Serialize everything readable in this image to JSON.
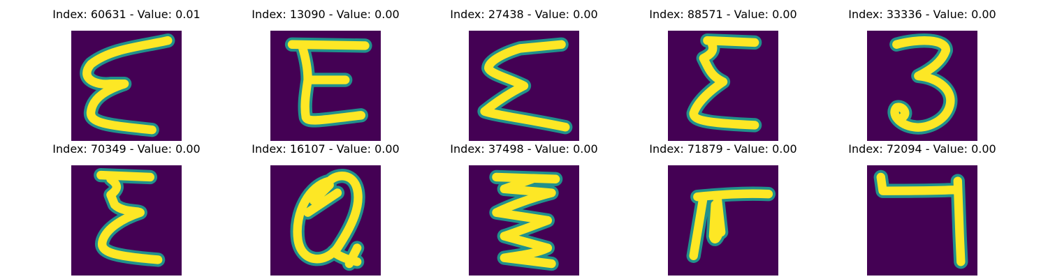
{
  "panels": [
    {
      "index": "60631",
      "value": "0.01",
      "title": "Index: 60631 - Value: 0.01"
    },
    {
      "index": "13090",
      "value": "0.00",
      "title": "Index: 13090 - Value: 0.00"
    },
    {
      "index": "27438",
      "value": "0.00",
      "title": "Index: 27438 - Value: 0.00"
    },
    {
      "index": "88571",
      "value": "0.00",
      "title": "Index: 88571 - Value: 0.00"
    },
    {
      "index": "33336",
      "value": "0.00",
      "title": "Index: 33336 - Value: 0.00"
    },
    {
      "index": "70349",
      "value": "0.00",
      "title": "Index: 70349 - Value: 0.00"
    },
    {
      "index": "16107",
      "value": "0.00",
      "title": "Index: 16107 - Value: 0.00"
    },
    {
      "index": "37498",
      "value": "0.00",
      "title": "Index: 37498 - Value: 0.00"
    },
    {
      "index": "71879",
      "value": "0.00",
      "title": "Index: 71879 - Value: 0.00"
    },
    {
      "index": "72094",
      "value": "0.00",
      "title": "Index: 72094 - Value: 0.00"
    }
  ],
  "colors": {
    "background": "#440154",
    "edge": "#21918c",
    "stroke": "#fde725"
  },
  "glyph_icons": [
    "epsilon-glyph-icon",
    "epsilon-glyph-icon",
    "sigma-glyph-icon",
    "epsilon-glyph-icon",
    "three-glyph-icon",
    "epsilon-glyph-icon",
    "a-glyph-icon",
    "sigma-glyph-icon",
    "pi-glyph-icon",
    "seven-glyph-icon"
  ]
}
